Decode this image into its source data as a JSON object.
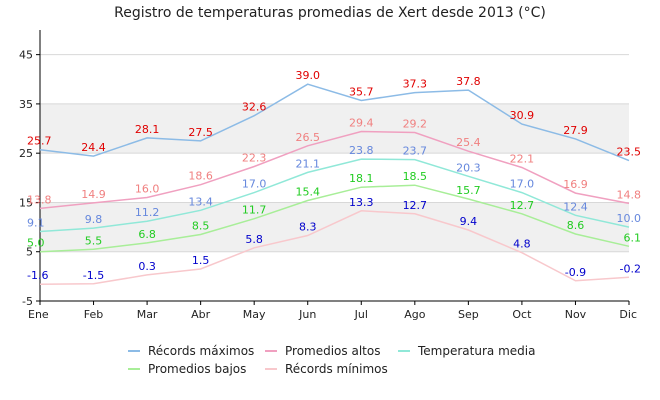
{
  "chart_data": {
    "type": "line",
    "title": "Registro de temperaturas promedias de Xert desde 2013 (°C)",
    "xlabel": "",
    "ylabel": "",
    "categories": [
      "Ene",
      "Feb",
      "Mar",
      "Abr",
      "May",
      "Jun",
      "Jul",
      "Ago",
      "Sep",
      "Oct",
      "Nov",
      "Dic"
    ],
    "ylim": [
      -5,
      50
    ],
    "yticks": [
      -5,
      5,
      15,
      25,
      35,
      45
    ],
    "bands": [
      [
        5,
        15
      ],
      [
        25,
        35
      ]
    ],
    "legend_position": "bottom",
    "series": [
      {
        "name": "Récords máximos",
        "line_color": "#8cbbe6",
        "label_color": "#e00000",
        "values": [
          25.7,
          24.4,
          28.1,
          27.5,
          32.6,
          39.0,
          35.7,
          37.3,
          37.8,
          30.9,
          27.9,
          23.5
        ],
        "labels": [
          "25.7",
          "24.4",
          "28.1",
          "27.5",
          "32.6",
          "39.0",
          "35.7",
          "37.3",
          "37.8",
          "30.9",
          "27.9",
          "23.5"
        ]
      },
      {
        "name": "Promedios altos",
        "line_color": "#f0a0c0",
        "label_color": "#f08080",
        "values": [
          13.8,
          14.9,
          16.0,
          18.6,
          22.3,
          26.5,
          29.4,
          29.2,
          25.4,
          22.1,
          16.9,
          14.8
        ],
        "labels": [
          "13.8",
          "14.9",
          "16.0",
          "18.6",
          "22.3",
          "26.5",
          "29.4",
          "29.2",
          "25.4",
          "22.1",
          "16.9",
          "14.8"
        ]
      },
      {
        "name": "Temperatura media",
        "line_color": "#90e8d8",
        "label_color": "#6688dd",
        "values": [
          9.1,
          9.8,
          11.2,
          13.4,
          17.0,
          21.1,
          23.8,
          23.7,
          20.3,
          17.0,
          12.4,
          10.0
        ],
        "labels": [
          "9.1",
          "9.8",
          "11.2",
          "13.4",
          "17.0",
          "21.1",
          "23.8",
          "23.7",
          "20.3",
          "17.0",
          "12.4",
          "10.0"
        ]
      },
      {
        "name": "Promedios bajos",
        "line_color": "#a8ee98",
        "label_color": "#22cc22",
        "values": [
          5.0,
          5.5,
          6.8,
          8.5,
          11.7,
          15.4,
          18.1,
          18.5,
          15.7,
          12.7,
          8.6,
          6.1
        ],
        "labels": [
          "5.0",
          "5.5",
          "6.8",
          "8.5",
          "11.7",
          "15.4",
          "18.1",
          "18.5",
          "15.7",
          "12.7",
          "8.6",
          "6.1"
        ]
      },
      {
        "name": "Récords mínimos",
        "line_color": "#f8c8cc",
        "label_color": "#0000cc",
        "values": [
          -1.6,
          -1.5,
          0.3,
          1.5,
          5.8,
          8.3,
          13.3,
          12.7,
          9.4,
          4.8,
          -0.9,
          -0.2
        ],
        "labels": [
          "-1.6",
          "-1.5",
          "0.3",
          "1.5",
          "5.8",
          "8.3",
          "13.3",
          "12.7",
          "9.4",
          "4.8",
          "-0.9",
          "-0.2"
        ]
      }
    ]
  }
}
